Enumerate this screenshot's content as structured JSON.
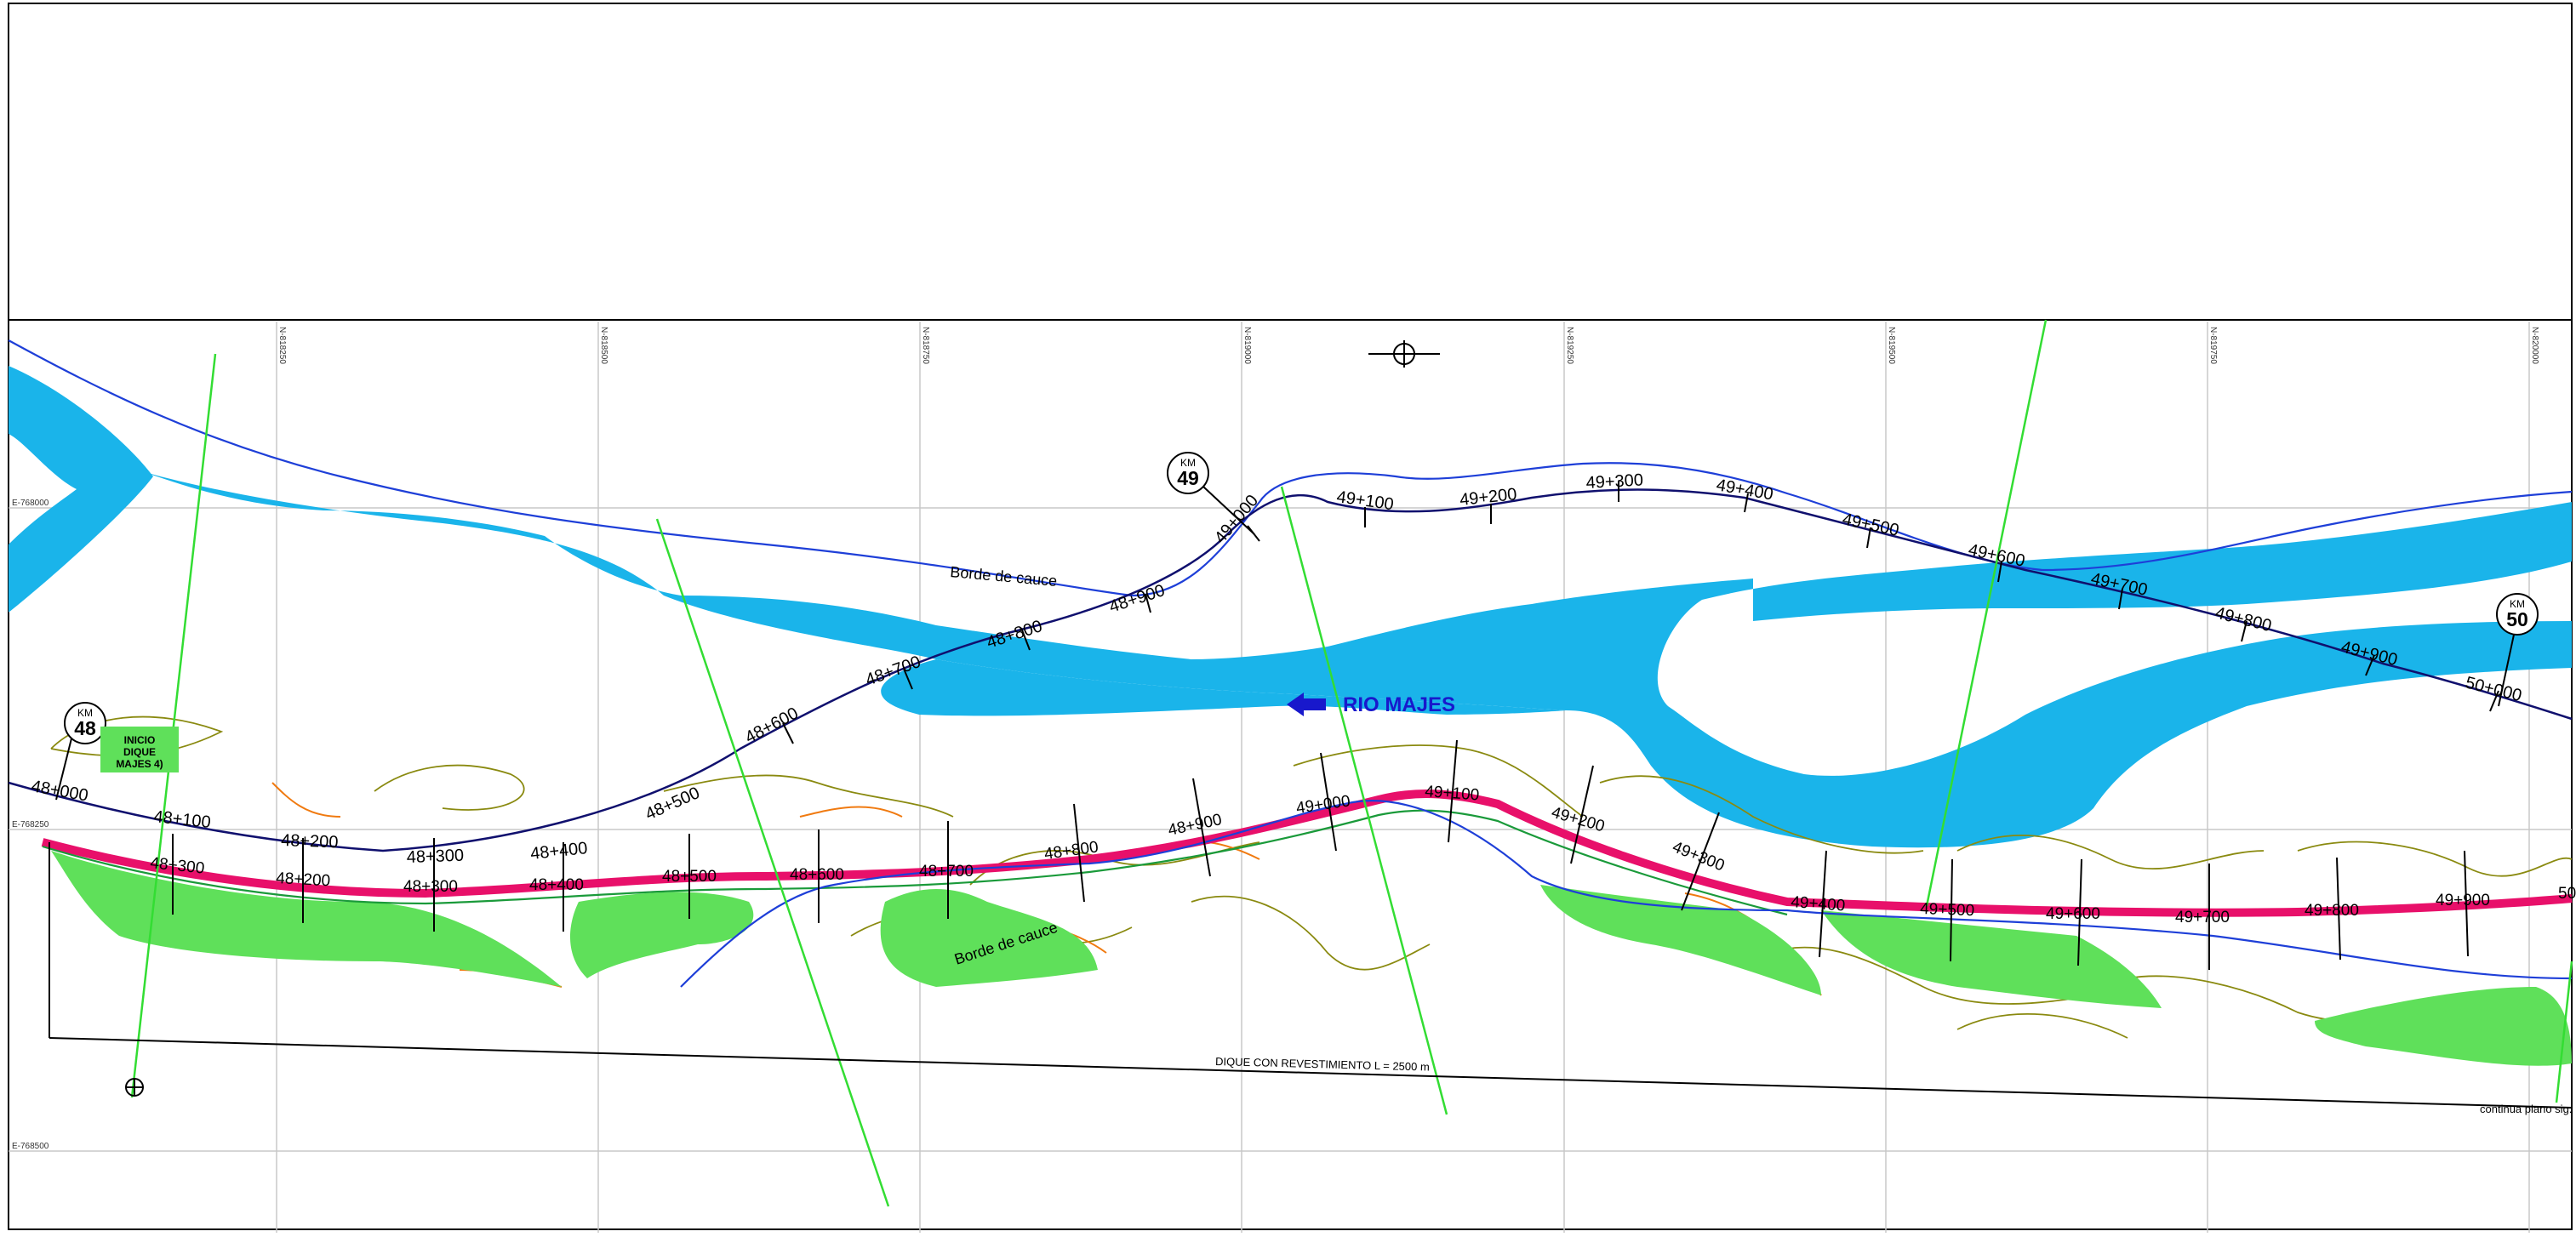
{
  "grid": {
    "north_labels": [
      "N-818250",
      "N-818500",
      "N-818750",
      "N-819000",
      "N-819250",
      "N-819500",
      "N-819750",
      "N-820000"
    ],
    "east_labels": [
      "E-768000",
      "E-768250",
      "E-768500"
    ]
  },
  "river": {
    "name": "RIO MAJES",
    "arrow": "left-arrow-icon",
    "color": "#1ab4ea"
  },
  "labels": {
    "borde_cauce_top": "Borde de cauce",
    "borde_cauce_bottom": "Borde de cauce",
    "dique": "DIQUE CON REVESTIMIENTO  L = 2500 m",
    "continua": "continua plano sig.",
    "inicio": [
      "INICIO",
      "DIQUE",
      "MAJES 4)"
    ]
  },
  "km_markers": [
    {
      "top": "KM",
      "num": "48"
    },
    {
      "top": "KM",
      "num": "49"
    },
    {
      "top": "KM",
      "num": "50"
    }
  ],
  "stations_top": [
    "48+600",
    "48+700",
    "48+800",
    "48+900",
    "49+000",
    "49+100",
    "49+200",
    "49+300",
    "49+400",
    "49+500",
    "49+600",
    "49+700",
    "49+800",
    "49+900",
    "50+000"
  ],
  "stations_bottom": [
    "48+000",
    "48+100",
    "48+200",
    "48+300",
    "48+400",
    "48+500"
  ],
  "stations_dike": [
    "48+300",
    "48+200",
    "48+300",
    "48+400",
    "48+500",
    "48+600",
    "48+700",
    "48+800",
    "48+900",
    "49+000",
    "49+100",
    "49+200",
    "49+300",
    "49+400",
    "49+500",
    "49+600",
    "49+700",
    "49+800",
    "49+900",
    "50"
  ],
  "colors": {
    "dike": "#e8106a",
    "axis": "#10106e",
    "edge": "#1e3fd8",
    "vegetation": "#5fe05a",
    "contour": "#8a8a10",
    "orange": "#f07a10",
    "section": "#33dd33"
  }
}
